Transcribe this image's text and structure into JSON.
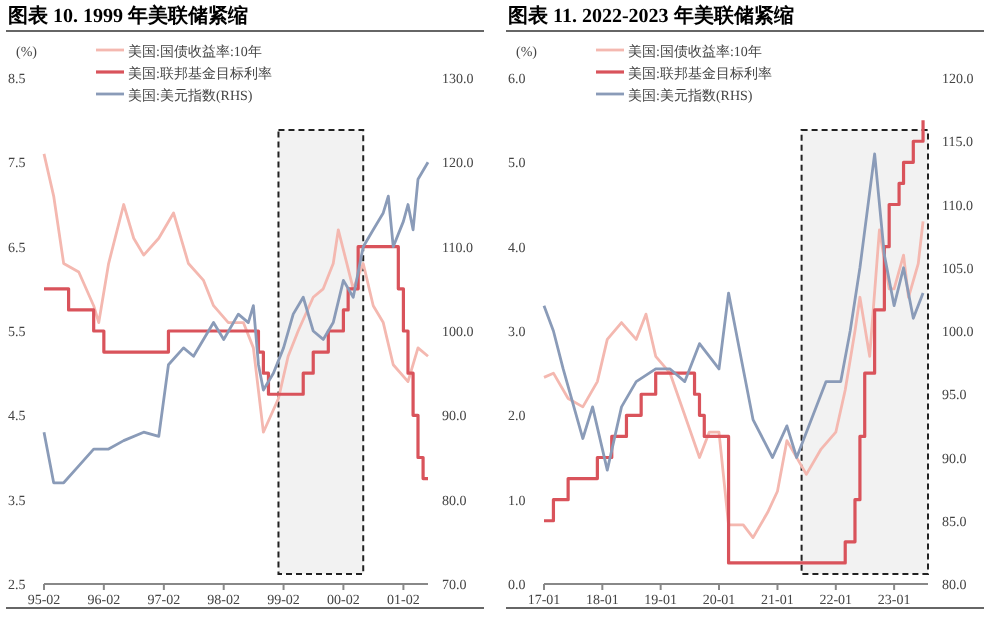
{
  "chart_data": [
    {
      "type": "line",
      "title": "图表 10. 1999 年美联储紧缩",
      "ylabel": "(%)",
      "legend": "top left",
      "xlim": [
        "1995-02",
        "2001-07"
      ],
      "xticks": [
        {
          "value": "1995-02",
          "label": "95-02"
        },
        {
          "value": "1996-02",
          "label": "96-02"
        },
        {
          "value": "1997-02",
          "label": "97-02"
        },
        {
          "value": "1998-02",
          "label": "98-02"
        },
        {
          "value": "1999-02",
          "label": "99-02"
        },
        {
          "value": "2000-02",
          "label": "00-02"
        },
        {
          "value": "2001-02",
          "label": "01-02"
        }
      ],
      "ylim": [
        2.5,
        8.5
      ],
      "yticks": [
        2.5,
        3.5,
        4.5,
        5.5,
        6.5,
        7.5,
        8.5
      ],
      "y2lim": [
        70,
        130
      ],
      "y2ticks": [
        {
          "value": 70,
          "label": "70.0"
        },
        {
          "value": 80,
          "label": "80.0"
        },
        {
          "value": 90,
          "label": "90.0"
        },
        {
          "value": 100,
          "label": "100.0"
        },
        {
          "value": 110,
          "label": "110.0"
        },
        {
          "value": 120,
          "label": "120.0"
        },
        {
          "value": 130,
          "label": "130.0"
        }
      ],
      "bands": [
        {
          "axis": "x",
          "from": "1999-01",
          "to": "2000-06"
        }
      ],
      "series": [
        {
          "name": "美国:国债收益率:10年",
          "color": "#f4b8b0",
          "x": [
            "1995-02",
            "1995-04",
            "1995-06",
            "1995-09",
            "1995-12",
            "1996-01",
            "1996-03",
            "1996-06",
            "1996-08",
            "1996-10",
            "1997-01",
            "1997-04",
            "1997-07",
            "1997-10",
            "1997-12",
            "1998-03",
            "1998-06",
            "1998-08",
            "1998-10",
            "1999-01",
            "1999-03",
            "1999-05",
            "1999-08",
            "1999-10",
            "1999-12",
            "2000-01",
            "2000-04",
            "2000-06",
            "2000-08",
            "2000-10",
            "2000-12",
            "2001-03",
            "2001-05",
            "2001-07"
          ],
          "values": [
            7.6,
            7.1,
            6.3,
            6.2,
            5.8,
            5.6,
            6.3,
            7.0,
            6.6,
            6.4,
            6.6,
            6.9,
            6.3,
            6.1,
            5.8,
            5.6,
            5.6,
            5.3,
            4.3,
            4.7,
            5.2,
            5.5,
            5.9,
            6.0,
            6.3,
            6.7,
            6.0,
            6.3,
            5.8,
            5.6,
            5.1,
            4.9,
            5.3,
            5.2
          ]
        },
        {
          "name": "美国:联邦基金目标利率",
          "color": "#d9535b",
          "type": "step",
          "x": [
            "1995-02",
            "1995-07",
            "1995-12",
            "1996-02",
            "1997-03",
            "1998-09",
            "1998-10",
            "1998-11",
            "1999-06",
            "1999-08",
            "1999-11",
            "2000-02",
            "2000-03",
            "2000-05",
            "2001-01",
            "2001-02",
            "2001-03",
            "2001-04",
            "2001-05",
            "2001-06",
            "2001-07"
          ],
          "values": [
            6.0,
            5.75,
            5.5,
            5.25,
            5.5,
            5.25,
            5.0,
            4.75,
            5.0,
            5.25,
            5.5,
            5.75,
            6.0,
            6.5,
            6.0,
            5.5,
            5.0,
            4.5,
            4.0,
            3.75,
            3.75
          ]
        },
        {
          "name": "美国:美元指数(RHS)",
          "color": "#8a9bb8",
          "axis": "y2",
          "x": [
            "1995-02",
            "1995-04",
            "1995-06",
            "1995-09",
            "1995-12",
            "1996-03",
            "1996-06",
            "1996-10",
            "1997-01",
            "1997-03",
            "1997-06",
            "1997-08",
            "1997-12",
            "1998-02",
            "1998-05",
            "1998-07",
            "1998-08",
            "1998-09",
            "1998-10",
            "1998-12",
            "1999-02",
            "1999-04",
            "1999-06",
            "1999-08",
            "1999-10",
            "1999-12",
            "2000-02",
            "2000-04",
            "2000-06",
            "2000-08",
            "2000-10",
            "2000-11",
            "2000-12",
            "2001-02",
            "2001-03",
            "2001-04",
            "2001-05",
            "2001-07"
          ],
          "values": [
            88,
            82,
            82,
            84,
            86,
            86,
            87,
            88,
            87.5,
            96,
            98,
            97,
            101,
            99,
            102,
            101,
            103,
            96,
            93,
            95,
            98,
            102,
            104,
            100,
            99,
            101,
            106,
            104,
            110,
            112,
            114,
            116,
            110,
            113,
            115,
            112,
            118,
            120
          ]
        }
      ]
    },
    {
      "type": "line",
      "title": "图表 11. 2022-2023 年美联储紧缩",
      "ylabel": "(%)",
      "legend": "top left",
      "xlim": [
        "2017-01",
        "2023-08"
      ],
      "xticks": [
        {
          "value": "2017-01",
          "label": "17-01"
        },
        {
          "value": "2018-01",
          "label": "18-01"
        },
        {
          "value": "2019-01",
          "label": "19-01"
        },
        {
          "value": "2020-01",
          "label": "20-01"
        },
        {
          "value": "2021-01",
          "label": "21-01"
        },
        {
          "value": "2022-01",
          "label": "22-01"
        },
        {
          "value": "2023-01",
          "label": "23-01"
        }
      ],
      "ylim": [
        0,
        6
      ],
      "yticks": [
        {
          "value": 0,
          "label": "0.0"
        },
        {
          "value": 1,
          "label": "1.0"
        },
        {
          "value": 2,
          "label": "2.0"
        },
        {
          "value": 3,
          "label": "3.0"
        },
        {
          "value": 4,
          "label": "4.0"
        },
        {
          "value": 5,
          "label": "5.0"
        },
        {
          "value": 6,
          "label": "6.0"
        }
      ],
      "y2lim": [
        80,
        120
      ],
      "y2ticks": [
        {
          "value": 80,
          "label": "80.0"
        },
        {
          "value": 85,
          "label": "85.0"
        },
        {
          "value": 90,
          "label": "90.0"
        },
        {
          "value": 95,
          "label": "95.0"
        },
        {
          "value": 100,
          "label": "100.0"
        },
        {
          "value": 105,
          "label": "105.0"
        },
        {
          "value": 110,
          "label": "110.0"
        },
        {
          "value": 115,
          "label": "115.0"
        },
        {
          "value": 120,
          "label": "120.0"
        }
      ],
      "bands": [
        {
          "axis": "x",
          "from": "2021-06",
          "to": "2023-08"
        }
      ],
      "series": [
        {
          "name": "美国:国债收益率:10年",
          "color": "#f4b8b0",
          "x": [
            "2017-01",
            "2017-03",
            "2017-06",
            "2017-09",
            "2017-12",
            "2018-02",
            "2018-05",
            "2018-08",
            "2018-10",
            "2018-12",
            "2019-03",
            "2019-06",
            "2019-09",
            "2019-11",
            "2020-01",
            "2020-03",
            "2020-06",
            "2020-08",
            "2020-11",
            "2021-01",
            "2021-03",
            "2021-07",
            "2021-10",
            "2022-01",
            "2022-03",
            "2022-05",
            "2022-06",
            "2022-08",
            "2022-10",
            "2022-12",
            "2023-01",
            "2023-03",
            "2023-04",
            "2023-06",
            "2023-07"
          ],
          "values": [
            2.45,
            2.5,
            2.2,
            2.1,
            2.4,
            2.9,
            3.1,
            2.9,
            3.2,
            2.7,
            2.5,
            2.0,
            1.5,
            1.8,
            1.8,
            0.7,
            0.7,
            0.55,
            0.85,
            1.1,
            1.7,
            1.3,
            1.6,
            1.8,
            2.3,
            3.0,
            3.4,
            2.7,
            4.2,
            3.5,
            3.5,
            3.9,
            3.4,
            3.8,
            4.3
          ]
        },
        {
          "name": "美国:联邦基金目标利率",
          "color": "#d9535b",
          "type": "step",
          "x": [
            "2017-01",
            "2017-03",
            "2017-06",
            "2017-12",
            "2018-03",
            "2018-06",
            "2018-09",
            "2018-12",
            "2019-08",
            "2019-09",
            "2019-10",
            "2020-03",
            "2022-03",
            "2022-05",
            "2022-06",
            "2022-07",
            "2022-09",
            "2022-11",
            "2022-12",
            "2023-02",
            "2023-03",
            "2023-05",
            "2023-07"
          ],
          "values": [
            0.75,
            1.0,
            1.25,
            1.5,
            1.75,
            2.0,
            2.25,
            2.5,
            2.25,
            2.0,
            1.75,
            0.25,
            0.5,
            1.0,
            1.75,
            2.5,
            3.25,
            4.0,
            4.5,
            4.75,
            5.0,
            5.25,
            5.5
          ]
        },
        {
          "name": "美国:美元指数(RHS)",
          "color": "#8a9bb8",
          "axis": "y2",
          "x": [
            "2017-01",
            "2017-03",
            "2017-05",
            "2017-09",
            "2017-11",
            "2018-02",
            "2018-05",
            "2018-08",
            "2018-12",
            "2019-03",
            "2019-06",
            "2019-09",
            "2020-01",
            "2020-03",
            "2020-05",
            "2020-08",
            "2020-12",
            "2021-03",
            "2021-05",
            "2021-08",
            "2021-11",
            "2022-02",
            "2022-04",
            "2022-06",
            "2022-09",
            "2022-11",
            "2023-01",
            "2023-03",
            "2023-05",
            "2023-07"
          ],
          "values": [
            102,
            100,
            97,
            91.5,
            94,
            89,
            94,
            96,
            97,
            97,
            96,
            99,
            97,
            103,
            99,
            93,
            90,
            92.5,
            90,
            93,
            96,
            96,
            100,
            105,
            114,
            106,
            102,
            105,
            101,
            103
          ]
        }
      ]
    }
  ]
}
